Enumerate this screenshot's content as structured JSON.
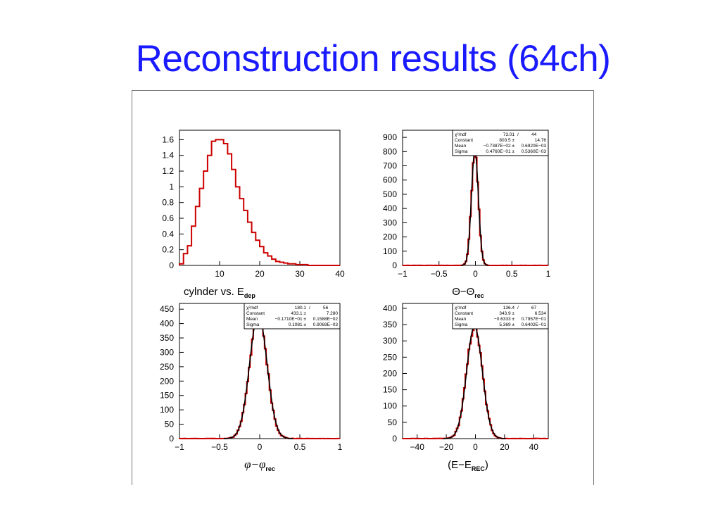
{
  "slide": {
    "title": "Reconstruction results (64ch)"
  },
  "colors": {
    "title": "#1a1aff",
    "histogram": "#cc0000",
    "fit": "#000000",
    "frame": "#777777"
  },
  "chart_data": [
    {
      "type": "histogram",
      "title": "",
      "xlabel": {
        "base": "cylnder vs. E",
        "sub": "dep"
      },
      "ylabel": "",
      "xlim": [
        0,
        40
      ],
      "ylim": [
        0,
        1.72
      ],
      "xticks": [
        10,
        20,
        30,
        40
      ],
      "yticks": [
        0,
        0.2,
        0.4,
        0.6,
        0.8,
        1,
        1.2,
        1.4,
        1.6
      ],
      "bin_width": 1,
      "bins_x": [
        0,
        1,
        2,
        3,
        4,
        5,
        6,
        7,
        8,
        9,
        10,
        11,
        12,
        13,
        14,
        15,
        16,
        17,
        18,
        19,
        20,
        21,
        22,
        23,
        24,
        25,
        26,
        27,
        28,
        29,
        30,
        31,
        32,
        33,
        34,
        35,
        36,
        37,
        38,
        39
      ],
      "bins_y": [
        0.02,
        0.15,
        0.25,
        0.5,
        0.75,
        0.98,
        1.2,
        1.4,
        1.58,
        1.6,
        1.6,
        1.55,
        1.42,
        1.22,
        1.0,
        0.85,
        0.7,
        0.55,
        0.42,
        0.32,
        0.24,
        0.16,
        0.12,
        0.08,
        0.05,
        0.04,
        0.03,
        0.02,
        0.02,
        0.01,
        0.01,
        0.01,
        0,
        0,
        0,
        0,
        0,
        0,
        0,
        0
      ],
      "stats": null
    },
    {
      "type": "histogram",
      "title": "",
      "xlabel": {
        "base": "Θ−Θ",
        "sub": "rec"
      },
      "ylabel": "",
      "xlim": [
        -1,
        1
      ],
      "ylim": [
        0,
        950
      ],
      "xticks": [
        -1,
        -0.5,
        0,
        0.5,
        1
      ],
      "yticks": [
        0,
        100,
        200,
        300,
        400,
        500,
        600,
        700,
        800,
        900
      ],
      "bin_width": 0.02,
      "gauss_fit": {
        "constant": 803.5,
        "mean": -0.007387,
        "sigma": 0.0476,
        "chi2": 73.01,
        "ndf": 44
      },
      "stats": [
        [
          "χ²/ndf",
          "73.01",
          "/",
          "44"
        ],
        [
          "Constant",
          "803.5 ±",
          "14.76",
          ""
        ],
        [
          "Mean",
          "−0.7387E−02 ±",
          "0.6920E−03",
          ""
        ],
        [
          "Sigma",
          "0.4760E−01 ±",
          "0.5360E−03",
          ""
        ]
      ]
    },
    {
      "type": "histogram",
      "title": "",
      "xlabel": {
        "base": "φ−φ",
        "sub": "rec"
      },
      "ylabel": "",
      "xlim": [
        -1,
        1
      ],
      "ylim": [
        0,
        470
      ],
      "xticks": [
        -1,
        -0.5,
        0,
        0.5,
        1
      ],
      "yticks": [
        0,
        50,
        100,
        150,
        200,
        250,
        300,
        350,
        400,
        450
      ],
      "bin_width": 0.02,
      "gauss_fit": {
        "constant": 433.1,
        "mean": -0.0171,
        "sigma": 0.1081,
        "chi2": 180.1,
        "ndf": 56
      },
      "stats": [
        [
          "χ²/ndf",
          "180.1",
          "/",
          "56"
        ],
        [
          "Constant",
          "433.1 ±",
          "7.280",
          ""
        ],
        [
          "Mean",
          "−0.1710E−01 ±",
          "0.1588E−02",
          ""
        ],
        [
          "Sigma",
          "0.1081 ±",
          "0.9069E−03",
          ""
        ]
      ]
    },
    {
      "type": "histogram",
      "title": "",
      "xlabel": {
        "base": "(E−E",
        "sub": "REC",
        "suffix": ")"
      },
      "ylabel": "",
      "xlim": [
        -50,
        50
      ],
      "ylim": [
        0,
        415
      ],
      "xticks": [
        -40,
        -20,
        0,
        20,
        40
      ],
      "yticks": [
        0,
        50,
        100,
        150,
        200,
        250,
        300,
        350,
        400
      ],
      "bin_width": 1,
      "gauss_fit": {
        "constant": 343.9,
        "mean": -0.6333,
        "sigma": 5.369,
        "chi2": 136.4,
        "ndf": 67
      },
      "stats": [
        [
          "χ²/ndf",
          "136.4",
          "/",
          "67"
        ],
        [
          "Constant",
          "343.9 ±",
          "6.534",
          ""
        ],
        [
          "Mean",
          "−0.6333 ±",
          "0.7957E−01",
          ""
        ],
        [
          "Sigma",
          "5.369 ±",
          "0.6402E−01",
          ""
        ]
      ]
    }
  ]
}
